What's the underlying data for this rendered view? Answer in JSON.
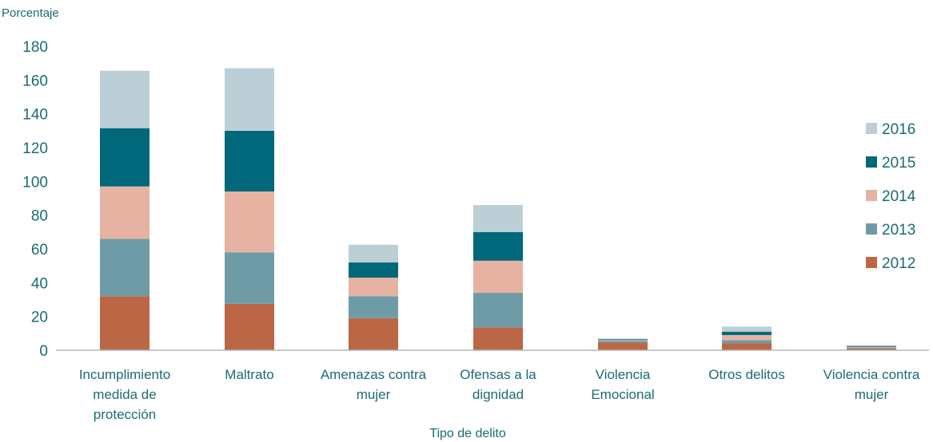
{
  "chart_data": {
    "type": "bar",
    "stacked": true,
    "ylabel": "Porcentaje",
    "xlabel": "Tipo de delito",
    "ylim": [
      0,
      180
    ],
    "yticks": [
      0,
      20,
      40,
      60,
      80,
      100,
      120,
      140,
      160,
      180
    ],
    "grid": false,
    "legend_position": "right",
    "categories": [
      [
        "Incumplimiento",
        "medida de",
        "protección"
      ],
      [
        "Maltrato"
      ],
      [
        "Amenazas contra",
        "mujer"
      ],
      [
        "Ofensas a la",
        "dignidad"
      ],
      [
        "Violencia",
        "Emocional"
      ],
      [
        "Otros delitos"
      ],
      [
        "Violencia contra",
        "mujer"
      ]
    ],
    "series": [
      {
        "name": "2012",
        "color": "#bb6645",
        "values": [
          32,
          27.5,
          19,
          13.5,
          4.5,
          4,
          1
        ]
      },
      {
        "name": "2013",
        "color": "#6f9ba7",
        "values": [
          34,
          30.5,
          13,
          20.5,
          1,
          2,
          0.5
        ]
      },
      {
        "name": "2014",
        "color": "#e6b3a2",
        "values": [
          31,
          36,
          11,
          19,
          0.5,
          3,
          0.5
        ]
      },
      {
        "name": "2015",
        "color": "#00687a",
        "values": [
          34.5,
          36,
          9,
          17,
          0.5,
          2,
          0.5
        ]
      },
      {
        "name": "2016",
        "color": "#bccfd6",
        "values": [
          34,
          37,
          10.5,
          16,
          0.5,
          3,
          0.5
        ]
      }
    ]
  },
  "colors": {
    "text": "#1b6b74",
    "axis": "#b7b7b7"
  }
}
